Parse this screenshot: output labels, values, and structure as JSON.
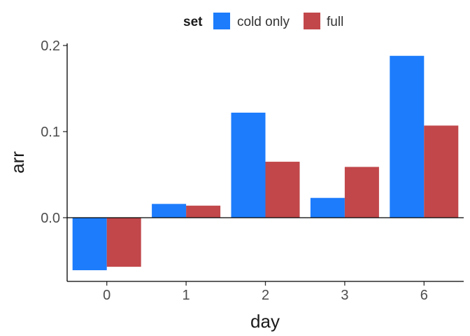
{
  "chart_data": {
    "type": "bar",
    "xlabel": "day",
    "ylabel": "arr",
    "categories": [
      "0",
      "1",
      "2",
      "3",
      "6"
    ],
    "ylim": [
      -0.073,
      0.2
    ],
    "yticks": [
      {
        "value": 0.0,
        "label": "0.0"
      },
      {
        "value": 0.1,
        "label": "0.1"
      },
      {
        "value": 0.2,
        "label": "0.2"
      }
    ],
    "legend": {
      "title": "set",
      "position": "top"
    },
    "zero_line": true,
    "grid": false,
    "series": [
      {
        "name": "cold only",
        "color": "#1c7cfc",
        "values": [
          -0.061,
          0.016,
          0.122,
          0.023,
          0.188
        ]
      },
      {
        "name": "full",
        "color": "#c1474a",
        "values": [
          -0.057,
          0.014,
          0.065,
          0.059,
          0.107
        ]
      }
    ]
  }
}
